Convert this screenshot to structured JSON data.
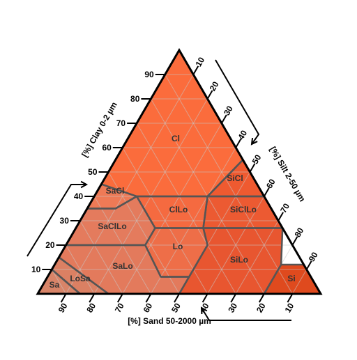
{
  "diagram": {
    "axes": {
      "clay": {
        "title": "[%] Clay 0-2 µm",
        "ticks": [
          "10",
          "20",
          "30",
          "40",
          "50",
          "60",
          "70",
          "80",
          "90"
        ]
      },
      "silt": {
        "title": "[%] Silt 2-50 µm",
        "ticks": [
          "10",
          "20",
          "30",
          "40",
          "50",
          "60",
          "70",
          "80",
          "90"
        ]
      },
      "sand": {
        "title": "[%] Sand 50-2000 µm",
        "ticks": [
          "90",
          "80",
          "70",
          "60",
          "50",
          "40",
          "30",
          "20",
          "10"
        ]
      }
    },
    "classes": [
      {
        "id": "Cl",
        "label": "Cl",
        "color": "#fb6c3c"
      },
      {
        "id": "SiCl",
        "label": "SiCl",
        "color": "#ef5a30"
      },
      {
        "id": "SaCl",
        "label": "SaCl",
        "color": "#ee7a56"
      },
      {
        "id": "ClLo",
        "label": "ClLo",
        "color": "#f56a40"
      },
      {
        "id": "SiClLo",
        "label": "SiClLo",
        "color": "#ec5a32"
      },
      {
        "id": "SaClLo",
        "label": "SaClLo",
        "color": "#e47b5d"
      },
      {
        "id": "Lo",
        "label": "Lo",
        "color": "#ee6e48"
      },
      {
        "id": "SiLo",
        "label": "SiLo",
        "color": "#e85630"
      },
      {
        "id": "SaLo",
        "label": "SaLo",
        "color": "#e37a5c"
      },
      {
        "id": "LoSa",
        "label": "LoSa",
        "color": "#db8063"
      },
      {
        "id": "Sa",
        "label": "Sa",
        "color": "#d88468"
      },
      {
        "id": "Si",
        "label": "Si",
        "color": "#df4a1e"
      }
    ],
    "colors": {
      "border": "#555555",
      "grid": "#c8c8c8",
      "axis": "#000000"
    }
  }
}
